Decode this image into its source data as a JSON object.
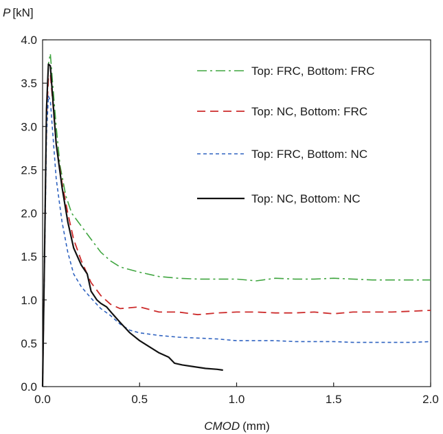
{
  "chart_data": {
    "type": "line",
    "ylabel_symbol": "P",
    "ylabel_unit": "[kN]",
    "xlabel_symbol": "CMOD",
    "xlabel_unit": "(mm)",
    "xlim": [
      0,
      2.0
    ],
    "ylim": [
      0,
      4.0
    ],
    "x_ticks": [
      "0.0",
      "0.5",
      "1.0",
      "1.5",
      "2.0"
    ],
    "y_ticks": [
      "0.0",
      "0.5",
      "1.0",
      "1.5",
      "2.0",
      "2.5",
      "3.0",
      "3.5",
      "4.0"
    ],
    "grid": false,
    "legend_position": "top-right",
    "series": [
      {
        "name": "Top: FRC, Bottom: FRC",
        "color": "#3fa53f",
        "dash": "dashdot",
        "points": [
          [
            0,
            0
          ],
          [
            0.01,
            1.6
          ],
          [
            0.02,
            3.2
          ],
          [
            0.03,
            3.72
          ],
          [
            0.04,
            3.84
          ],
          [
            0.05,
            3.55
          ],
          [
            0.07,
            3.0
          ],
          [
            0.09,
            2.55
          ],
          [
            0.12,
            2.2
          ],
          [
            0.15,
            2.0
          ],
          [
            0.2,
            1.85
          ],
          [
            0.25,
            1.7
          ],
          [
            0.3,
            1.55
          ],
          [
            0.35,
            1.45
          ],
          [
            0.4,
            1.38
          ],
          [
            0.5,
            1.32
          ],
          [
            0.6,
            1.27
          ],
          [
            0.7,
            1.25
          ],
          [
            0.8,
            1.24
          ],
          [
            0.9,
            1.24
          ],
          [
            1.0,
            1.24
          ],
          [
            1.1,
            1.22
          ],
          [
            1.2,
            1.25
          ],
          [
            1.3,
            1.24
          ],
          [
            1.4,
            1.24
          ],
          [
            1.5,
            1.25
          ],
          [
            1.6,
            1.24
          ],
          [
            1.7,
            1.23
          ],
          [
            1.8,
            1.23
          ],
          [
            1.9,
            1.23
          ],
          [
            2.0,
            1.23
          ]
        ]
      },
      {
        "name": "Top: NC, Bottom: FRC",
        "color": "#cc2a2a",
        "dash": "longdash",
        "points": [
          [
            0,
            0
          ],
          [
            0.01,
            1.5
          ],
          [
            0.02,
            3.1
          ],
          [
            0.03,
            3.55
          ],
          [
            0.04,
            3.6
          ],
          [
            0.05,
            3.35
          ],
          [
            0.07,
            2.8
          ],
          [
            0.1,
            2.35
          ],
          [
            0.13,
            2.0
          ],
          [
            0.16,
            1.7
          ],
          [
            0.2,
            1.45
          ],
          [
            0.25,
            1.2
          ],
          [
            0.3,
            1.05
          ],
          [
            0.35,
            0.95
          ],
          [
            0.4,
            0.9
          ],
          [
            0.5,
            0.92
          ],
          [
            0.6,
            0.86
          ],
          [
            0.7,
            0.86
          ],
          [
            0.8,
            0.83
          ],
          [
            0.9,
            0.85
          ],
          [
            1.0,
            0.86
          ],
          [
            1.1,
            0.86
          ],
          [
            1.2,
            0.85
          ],
          [
            1.3,
            0.85
          ],
          [
            1.4,
            0.86
          ],
          [
            1.5,
            0.84
          ],
          [
            1.6,
            0.86
          ],
          [
            1.7,
            0.86
          ],
          [
            1.8,
            0.86
          ],
          [
            1.9,
            0.87
          ],
          [
            2.0,
            0.88
          ]
        ]
      },
      {
        "name": "Top: FRC, Bottom: NC",
        "color": "#2e62c0",
        "dash": "shortdash",
        "points": [
          [
            0,
            0
          ],
          [
            0.01,
            1.4
          ],
          [
            0.02,
            2.9
          ],
          [
            0.03,
            3.35
          ],
          [
            0.04,
            3.3
          ],
          [
            0.05,
            3.0
          ],
          [
            0.07,
            2.4
          ],
          [
            0.1,
            1.9
          ],
          [
            0.13,
            1.55
          ],
          [
            0.16,
            1.3
          ],
          [
            0.2,
            1.15
          ],
          [
            0.25,
            1.02
          ],
          [
            0.3,
            0.9
          ],
          [
            0.35,
            0.82
          ],
          [
            0.4,
            0.72
          ],
          [
            0.45,
            0.65
          ],
          [
            0.5,
            0.62
          ],
          [
            0.6,
            0.59
          ],
          [
            0.7,
            0.57
          ],
          [
            0.8,
            0.56
          ],
          [
            0.9,
            0.55
          ],
          [
            1.0,
            0.53
          ],
          [
            1.1,
            0.53
          ],
          [
            1.2,
            0.53
          ],
          [
            1.3,
            0.52
          ],
          [
            1.4,
            0.52
          ],
          [
            1.5,
            0.52
          ],
          [
            1.6,
            0.51
          ],
          [
            1.7,
            0.51
          ],
          [
            1.8,
            0.51
          ],
          [
            1.9,
            0.51
          ],
          [
            2.0,
            0.52
          ]
        ]
      },
      {
        "name": "Top: NC, Bottom: NC",
        "color": "#111111",
        "dash": "solid",
        "points": [
          [
            0,
            0
          ],
          [
            0.01,
            1.5
          ],
          [
            0.02,
            3.2
          ],
          [
            0.03,
            3.72
          ],
          [
            0.04,
            3.7
          ],
          [
            0.05,
            3.4
          ],
          [
            0.07,
            2.8
          ],
          [
            0.1,
            2.3
          ],
          [
            0.13,
            1.9
          ],
          [
            0.16,
            1.6
          ],
          [
            0.2,
            1.4
          ],
          [
            0.23,
            1.3
          ],
          [
            0.25,
            1.1
          ],
          [
            0.28,
            1.0
          ],
          [
            0.3,
            0.96
          ],
          [
            0.33,
            0.92
          ],
          [
            0.36,
            0.84
          ],
          [
            0.4,
            0.74
          ],
          [
            0.45,
            0.62
          ],
          [
            0.5,
            0.53
          ],
          [
            0.55,
            0.46
          ],
          [
            0.6,
            0.39
          ],
          [
            0.65,
            0.34
          ],
          [
            0.68,
            0.27
          ],
          [
            0.72,
            0.25
          ],
          [
            0.78,
            0.23
          ],
          [
            0.84,
            0.21
          ],
          [
            0.9,
            0.2
          ],
          [
            0.93,
            0.19
          ]
        ]
      }
    ]
  }
}
